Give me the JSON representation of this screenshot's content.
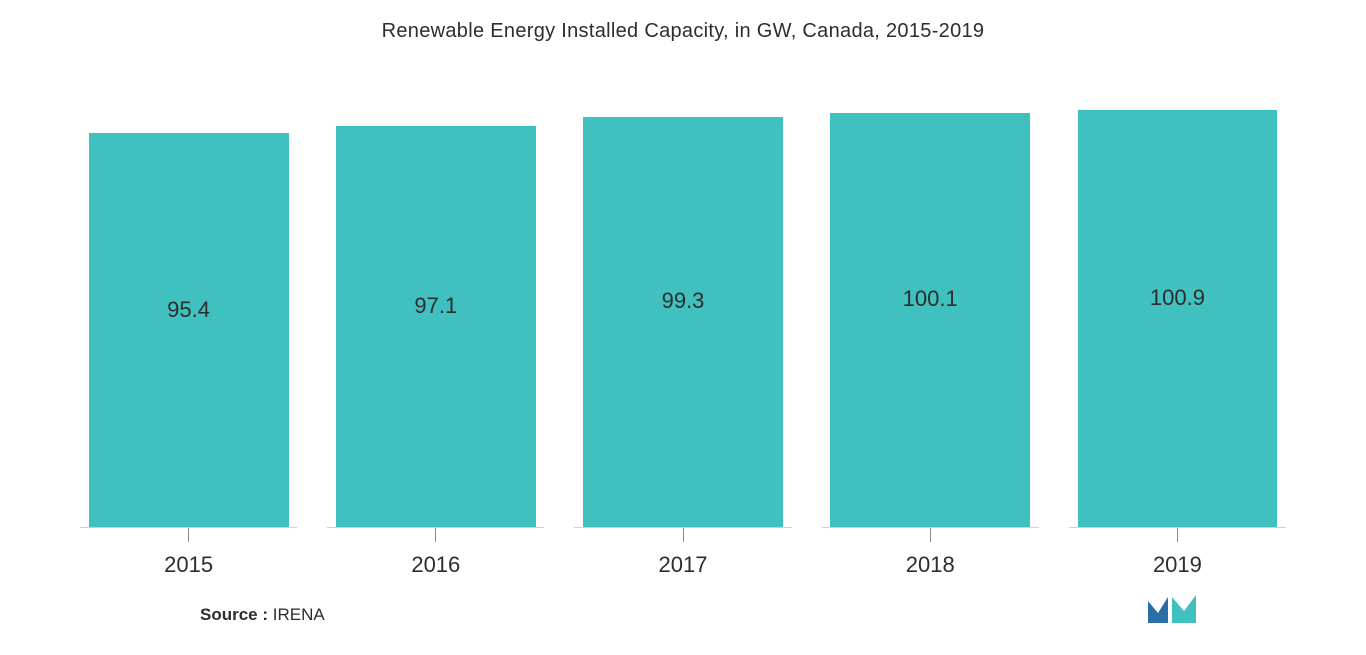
{
  "chart": {
    "type": "bar",
    "title": "Renewable Energy Installed Capacity, in GW, Canada, 2015-2019",
    "title_fontsize": 20,
    "title_color": "#2d2d2d",
    "categories": [
      "2015",
      "2016",
      "2017",
      "2018",
      "2019"
    ],
    "values": [
      95.4,
      97.1,
      99.3,
      100.1,
      100.9
    ],
    "value_labels": [
      "95.4",
      "97.1",
      "99.3",
      "100.1",
      "100.9"
    ],
    "bar_color": "#41c0c0",
    "value_label_color": "#2d2d2d",
    "value_label_fontsize": 22,
    "category_label_color": "#2d2d2d",
    "category_label_fontsize": 22,
    "background_color": "#ffffff",
    "ymax_display": 105,
    "ymin_display": 0,
    "axis_line_color": "#d0d0d0",
    "tick_color": "#888888",
    "bar_width_pct": 92
  },
  "source": {
    "label": "Source :",
    "value": " IRENA",
    "fontsize": 17,
    "color": "#2d2d2d"
  },
  "logo": {
    "name": "mordor-intelligence-logo",
    "primary_color": "#2a6ea8",
    "secondary_color": "#41c0c0"
  }
}
